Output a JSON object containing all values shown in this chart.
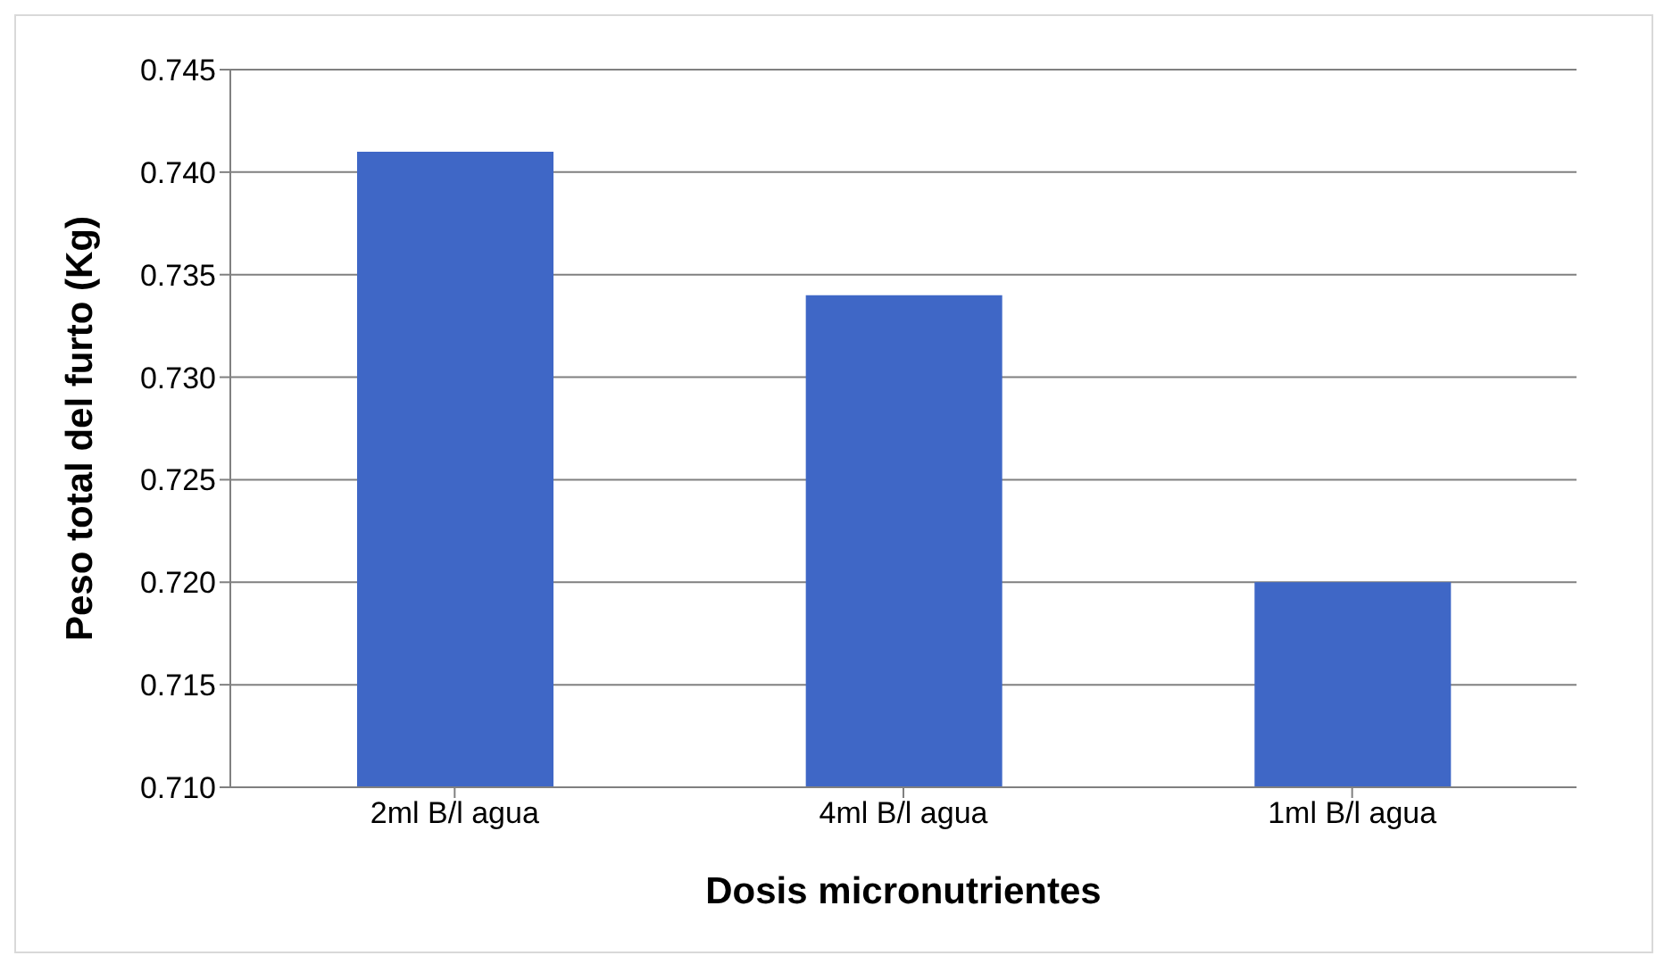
{
  "chart_data": {
    "type": "bar",
    "xlabel": "Dosis micronutrientes",
    "ylabel": "Peso total del furto (Kg)",
    "categories": [
      "2ml B/l agua",
      "4ml B/l agua",
      "1ml B/l agua"
    ],
    "values": [
      0.741,
      0.734,
      0.72
    ],
    "color": "#3f67c6",
    "ylim": [
      0.71,
      0.745
    ],
    "yticks": [
      {
        "value": 0.71,
        "label": "0.710"
      },
      {
        "value": 0.715,
        "label": "0.715"
      },
      {
        "value": 0.72,
        "label": "0.720"
      },
      {
        "value": 0.725,
        "label": "0.725"
      },
      {
        "value": 0.73,
        "label": "0.730"
      },
      {
        "value": 0.735,
        "label": "0.735"
      },
      {
        "value": 0.74,
        "label": "0.740"
      },
      {
        "value": 0.745,
        "label": "0.745"
      }
    ],
    "grid": "y",
    "legend": false
  }
}
